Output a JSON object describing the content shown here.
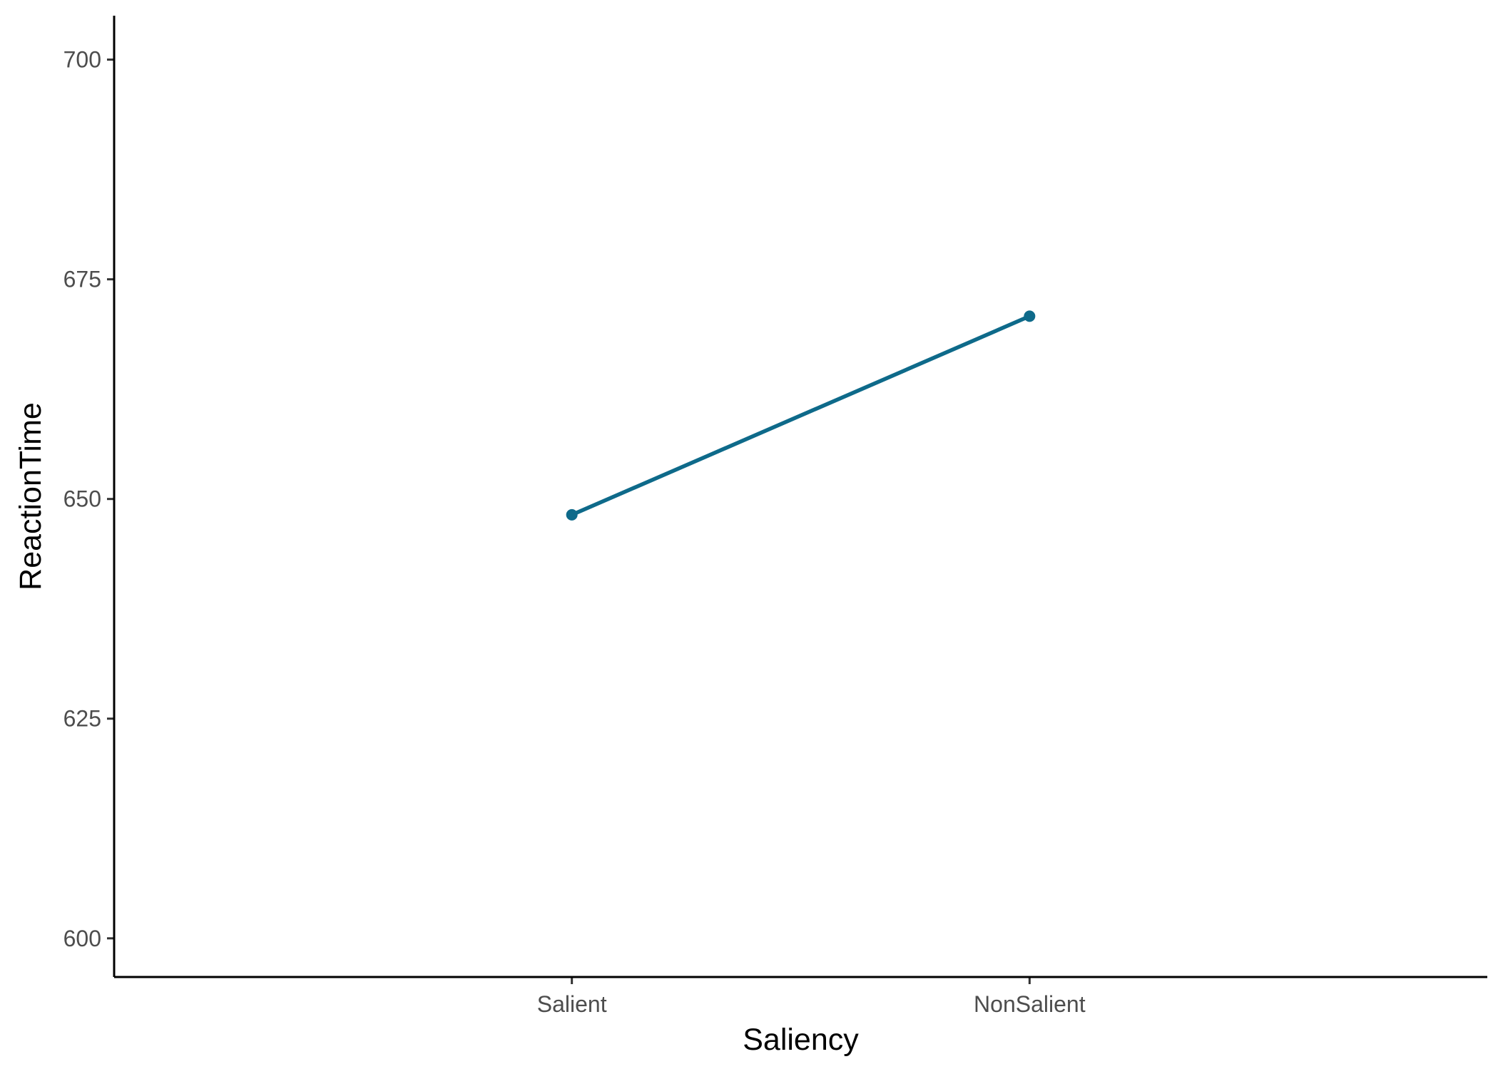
{
  "chart_data": {
    "type": "line",
    "title": "",
    "xlabel": "Saliency",
    "ylabel": "ReactionTime",
    "categories": [
      "Salient",
      "NonSalient"
    ],
    "series": [
      {
        "values": [
          648.2,
          670.8
        ]
      }
    ],
    "ylim": [
      595.6,
      705
    ],
    "yticks": [
      600,
      625,
      650,
      675,
      700
    ],
    "grid": false,
    "legend": "none",
    "line_color": "#0e6a8a"
  }
}
